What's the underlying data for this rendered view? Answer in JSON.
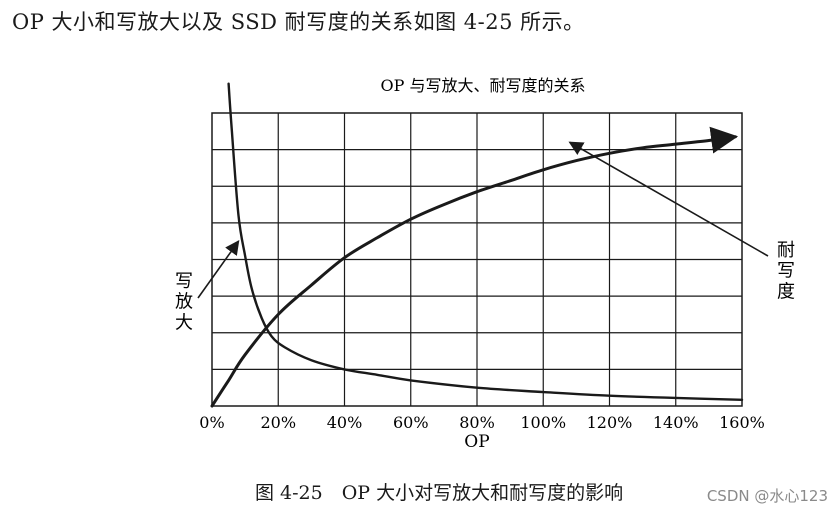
{
  "intro_text": "OP 大小和写放大以及 SSD 耐写度的关系如图 4-25 所示。",
  "figure_caption": "图 4-25　OP 大小对写放大和耐写度的影响",
  "watermark": "CSDN @水心123",
  "chart_data": {
    "type": "line",
    "title": "OP 与写放大、耐写度的关系",
    "xlabel": "OP",
    "ylabel": "",
    "x_ticks": [
      "0%",
      "20%",
      "40%",
      "60%",
      "80%",
      "100%",
      "120%",
      "140%",
      "160%"
    ],
    "xlim": [
      0,
      160
    ],
    "ylim": [
      0,
      8
    ],
    "grid": true,
    "series": [
      {
        "name": "写放大",
        "x": [
          5,
          6,
          8,
          10,
          12,
          15,
          18,
          22,
          30,
          40,
          50,
          60,
          80,
          100,
          120,
          140,
          160
        ],
        "y": [
          8.8,
          7.5,
          5.2,
          4.1,
          3.2,
          2.4,
          1.9,
          1.6,
          1.25,
          1.0,
          0.85,
          0.7,
          0.5,
          0.38,
          0.28,
          0.22,
          0.17
        ]
      },
      {
        "name": "耐写度",
        "x": [
          0,
          5,
          10,
          20,
          30,
          40,
          50,
          60,
          70,
          80,
          90,
          100,
          110,
          120,
          130,
          140,
          150,
          158
        ],
        "y": [
          0,
          0.7,
          1.4,
          2.5,
          3.3,
          4.05,
          4.6,
          5.1,
          5.5,
          5.85,
          6.15,
          6.45,
          6.7,
          6.9,
          7.05,
          7.15,
          7.25,
          7.35
        ]
      }
    ],
    "annotations": [
      {
        "text": "写放大",
        "target_x": 8,
        "target_y": 4.5
      },
      {
        "text": "耐写度",
        "target_x": 108,
        "target_y": 7.2
      }
    ]
  }
}
